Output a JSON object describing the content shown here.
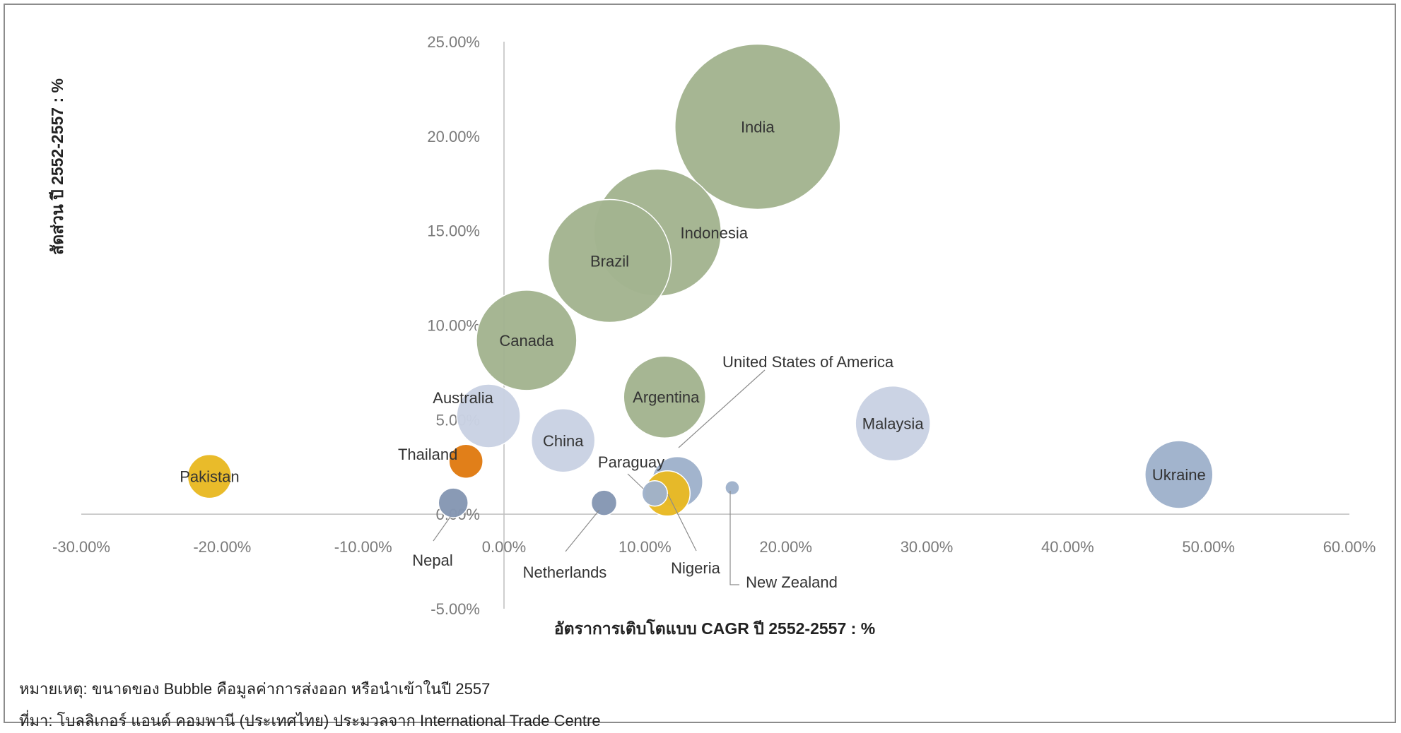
{
  "chart_data": {
    "type": "bubble",
    "title": "",
    "xlabel": "อัตราการเติบโตแบบ CAGR ปี 2552-2557 : %",
    "ylabel": "สัดส่วน ปี 2552-2557 : %",
    "xlim": [
      -30,
      60
    ],
    "ylim": [
      -5,
      25
    ],
    "x_ticks": [
      "-30.00%",
      "-20.00%",
      "-10.00%",
      "0.00%",
      "10.00%",
      "20.00%",
      "30.00%",
      "40.00%",
      "50.00%",
      "60.00%"
    ],
    "y_ticks": [
      "-5.00%",
      "0.00%",
      "5.00%",
      "10.00%",
      "15.00%",
      "20.00%",
      "25.00%"
    ],
    "grid": false,
    "legend": "none",
    "colors": {
      "green": "#a3b48f",
      "lightblue": "#c9d2e3",
      "blue": "#9fb2cb",
      "slate": "#8597b3",
      "yellow": "#e8b923",
      "orange": "#e07b12"
    },
    "points": [
      {
        "label": "India",
        "x": 18.0,
        "y": 20.5,
        "size": 117,
        "color": "green"
      },
      {
        "label": "Indonesia",
        "x": 10.9,
        "y": 14.9,
        "size": 90,
        "color": "green"
      },
      {
        "label": "Brazil",
        "x": 7.5,
        "y": 13.4,
        "size": 87,
        "color": "green"
      },
      {
        "label": "Canada",
        "x": 1.6,
        "y": 9.2,
        "size": 71,
        "color": "green"
      },
      {
        "label": "Argentina",
        "x": 11.4,
        "y": 6.2,
        "size": 58,
        "color": "green"
      },
      {
        "label": "Australia",
        "x": -1.1,
        "y": 5.2,
        "size": 45,
        "color": "lightblue"
      },
      {
        "label": "China",
        "x": 4.2,
        "y": 3.9,
        "size": 45,
        "color": "lightblue"
      },
      {
        "label": "Malaysia",
        "x": 27.6,
        "y": 4.8,
        "size": 53,
        "color": "lightblue"
      },
      {
        "label": "Ukraine",
        "x": 47.9,
        "y": 2.1,
        "size": 48,
        "color": "blue"
      },
      {
        "label": "United States of America",
        "x": 12.3,
        "y": 1.7,
        "size": 36,
        "color": "blue"
      },
      {
        "label": "Paraguay",
        "x": 10.7,
        "y": 1.1,
        "size": 18,
        "color": "blue"
      },
      {
        "label": "New Zealand",
        "x": 16.2,
        "y": 1.4,
        "size": 10,
        "color": "blue"
      },
      {
        "label": "Nigeria",
        "x": 11.6,
        "y": 1.1,
        "size": 32,
        "color": "yellow"
      },
      {
        "label": "Netherlands",
        "x": 7.1,
        "y": 0.6,
        "size": 18,
        "color": "slate"
      },
      {
        "label": "Nepal",
        "x": -3.6,
        "y": 0.6,
        "size": 21,
        "color": "slate"
      },
      {
        "label": "Thailand",
        "x": -2.7,
        "y": 2.8,
        "size": 24,
        "color": "orange"
      },
      {
        "label": "Pakistan",
        "x": -20.9,
        "y": 2.0,
        "size": 31,
        "color": "yellow"
      }
    ]
  },
  "notes": {
    "note1": "หมายเหตุ: ขนาดของ Bubble คือมูลค่าการส่งออก หรือนำเข้าในปี 2557",
    "note2": "ที่มา: โบลลิเกอร์ แอนด์ คอมพานี (ประเทศไทย) ประมวลจาก International Trade Centre"
  }
}
